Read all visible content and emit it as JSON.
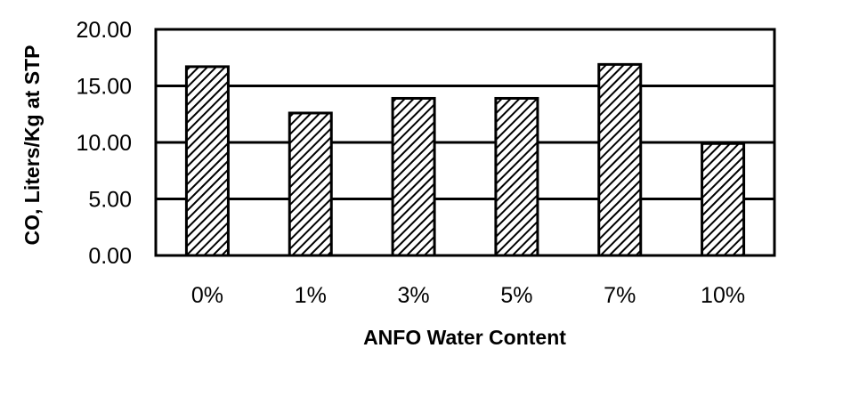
{
  "chart_data": {
    "type": "bar",
    "title": "",
    "xlabel": "ANFO Water Content",
    "ylabel": "CO, Liters/Kg at STP",
    "categories": [
      "0%",
      "1%",
      "3%",
      "5%",
      "7%",
      "10%"
    ],
    "values": [
      16.7,
      12.6,
      13.9,
      13.9,
      16.9,
      9.9
    ],
    "ylim": [
      0,
      20
    ],
    "yticks": [
      "0.00",
      "5.00",
      "10.00",
      "15.00",
      "20.00"
    ],
    "ytick_values": [
      0,
      5,
      10,
      15,
      20
    ],
    "grid": true,
    "legend": null,
    "bar_fill": "diagonal-hatch",
    "colors": {
      "bar_stroke": "#000000",
      "hatch": "#000000",
      "background": "#ffffff",
      "grid": "#000000"
    }
  }
}
